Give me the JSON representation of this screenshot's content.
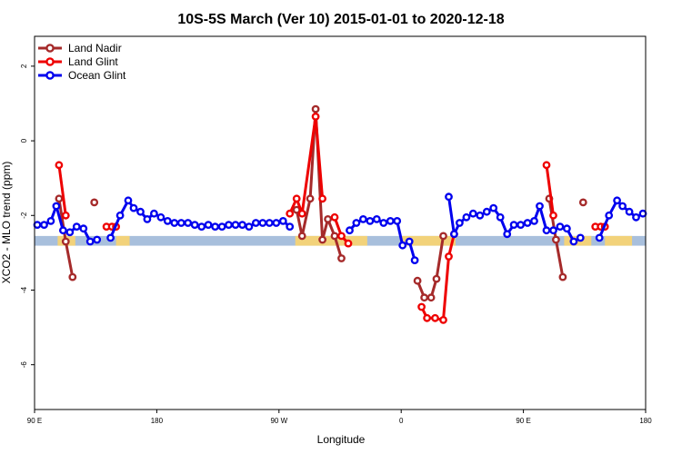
{
  "chart_data": {
    "type": "line",
    "title": "10S-5S March (Ver 10)   2015-01-01 to 2020-12-18",
    "xlabel": "Longitude",
    "ylabel": "XCO2 - MLO trend (ppm)",
    "xlim": [
      0,
      450
    ],
    "ylim": [
      -7.2,
      2.8
    ],
    "x_ticks": [
      {
        "value": 0,
        "label": "90 E"
      },
      {
        "value": 90,
        "label": "180"
      },
      {
        "value": 180,
        "label": "90 W"
      },
      {
        "value": 270,
        "label": "0"
      },
      {
        "value": 360,
        "label": "90 E"
      },
      {
        "value": 450,
        "label": "180"
      }
    ],
    "y_ticks": [
      {
        "value": -6,
        "label": "-6"
      },
      {
        "value": -4,
        "label": "-4"
      },
      {
        "value": -2,
        "label": "-2"
      },
      {
        "value": 0,
        "label": "0"
      },
      {
        "value": 2,
        "label": "2"
      }
    ],
    "legend_position": "top-left",
    "band": {
      "y_center": -2.68,
      "half_height": 0.13,
      "color": "#a8bfdc",
      "highlight_color": "#f2d27a",
      "highlight_ranges": [
        [
          17,
          30
        ],
        [
          60,
          70
        ],
        [
          192,
          245
        ],
        [
          270,
          310
        ],
        [
          390,
          410
        ],
        [
          420,
          440
        ]
      ]
    },
    "series": [
      {
        "name": "Land Nadir",
        "color": "#a52a2a",
        "segments": [
          [
            [
              18,
              -1.55
            ],
            [
              23,
              -2.7
            ],
            [
              28,
              -3.65
            ]
          ],
          [
            [
              44,
              -1.65
            ]
          ],
          [
            [
              193,
              -1.85
            ],
            [
              197,
              -2.55
            ],
            [
              203,
              -1.55
            ],
            [
              207,
              0.85
            ],
            [
              212,
              -2.65
            ],
            [
              216,
              -2.1
            ],
            [
              221,
              -2.55
            ],
            [
              226,
              -3.15
            ]
          ],
          [
            [
              282,
              -3.75
            ],
            [
              287,
              -4.2
            ],
            [
              292,
              -4.2
            ],
            [
              296,
              -3.7
            ],
            [
              301,
              -2.55
            ]
          ],
          [
            [
              379,
              -1.55
            ],
            [
              384,
              -2.65
            ],
            [
              389,
              -3.65
            ]
          ],
          [
            [
              404,
              -1.65
            ]
          ]
        ]
      },
      {
        "name": "Land Glint",
        "color": "#ee0000",
        "segments": [
          [
            [
              18,
              -0.65
            ],
            [
              23,
              -2.0
            ]
          ],
          [
            [
              53,
              -2.3
            ],
            [
              57,
              -2.3
            ],
            [
              60,
              -2.3
            ]
          ],
          [
            [
              188,
              -1.95
            ],
            [
              193,
              -1.55
            ],
            [
              197,
              -1.95
            ],
            [
              207,
              0.65
            ],
            [
              212,
              -1.55
            ]
          ],
          [
            [
              221,
              -2.05
            ],
            [
              226,
              -2.55
            ],
            [
              231,
              -2.75
            ]
          ],
          [
            [
              285,
              -4.45
            ],
            [
              289,
              -4.75
            ],
            [
              295,
              -4.75
            ],
            [
              301,
              -4.8
            ],
            [
              305,
              -3.1
            ],
            [
              309,
              -2.5
            ]
          ],
          [
            [
              377,
              -0.65
            ],
            [
              382,
              -2.0
            ]
          ],
          [
            [
              413,
              -2.3
            ],
            [
              417,
              -2.3
            ],
            [
              420,
              -2.3
            ]
          ]
        ]
      },
      {
        "name": "Ocean Glint",
        "color": "#0000ee",
        "segments": [
          [
            [
              2,
              -2.25
            ],
            [
              7,
              -2.25
            ],
            [
              12,
              -2.15
            ],
            [
              16,
              -1.75
            ],
            [
              21,
              -2.4
            ],
            [
              26,
              -2.45
            ],
            [
              31,
              -2.3
            ],
            [
              36,
              -2.35
            ],
            [
              41,
              -2.7
            ],
            [
              46,
              -2.65
            ]
          ],
          [
            [
              56,
              -2.6
            ],
            [
              63,
              -2.0
            ],
            [
              69,
              -1.6
            ],
            [
              73,
              -1.8
            ],
            [
              78,
              -1.9
            ],
            [
              83,
              -2.1
            ],
            [
              88,
              -1.95
            ],
            [
              93,
              -2.05
            ],
            [
              98,
              -2.15
            ],
            [
              103,
              -2.2
            ],
            [
              108,
              -2.2
            ],
            [
              113,
              -2.2
            ],
            [
              118,
              -2.25
            ],
            [
              123,
              -2.3
            ],
            [
              128,
              -2.25
            ],
            [
              133,
              -2.3
            ],
            [
              138,
              -2.3
            ],
            [
              143,
              -2.25
            ],
            [
              148,
              -2.25
            ],
            [
              153,
              -2.25
            ],
            [
              158,
              -2.3
            ],
            [
              163,
              -2.2
            ],
            [
              168,
              -2.2
            ],
            [
              173,
              -2.2
            ],
            [
              178,
              -2.2
            ],
            [
              183,
              -2.15
            ],
            [
              188,
              -2.3
            ]
          ],
          [
            [
              232,
              -2.4
            ],
            [
              237,
              -2.2
            ],
            [
              242,
              -2.1
            ],
            [
              247,
              -2.15
            ],
            [
              252,
              -2.1
            ],
            [
              257,
              -2.2
            ],
            [
              262,
              -2.15
            ],
            [
              267,
              -2.15
            ],
            [
              271,
              -2.8
            ],
            [
              276,
              -2.7
            ],
            [
              280,
              -3.2
            ]
          ],
          [
            [
              305,
              -1.5
            ],
            [
              309,
              -2.5
            ],
            [
              313,
              -2.2
            ],
            [
              318,
              -2.05
            ],
            [
              323,
              -1.95
            ],
            [
              328,
              -2.0
            ],
            [
              333,
              -1.9
            ],
            [
              338,
              -1.8
            ],
            [
              343,
              -2.05
            ],
            [
              348,
              -2.5
            ],
            [
              353,
              -2.25
            ],
            [
              358,
              -2.25
            ],
            [
              363,
              -2.2
            ],
            [
              368,
              -2.15
            ],
            [
              372,
              -1.75
            ],
            [
              377,
              -2.4
            ],
            [
              382,
              -2.4
            ],
            [
              387,
              -2.3
            ],
            [
              392,
              -2.35
            ],
            [
              397,
              -2.7
            ],
            [
              402,
              -2.6
            ]
          ],
          [
            [
              416,
              -2.6
            ],
            [
              423,
              -2.0
            ],
            [
              429,
              -1.6
            ],
            [
              433,
              -1.75
            ],
            [
              438,
              -1.9
            ],
            [
              443,
              -2.05
            ],
            [
              448,
              -1.95
            ]
          ]
        ]
      }
    ]
  }
}
